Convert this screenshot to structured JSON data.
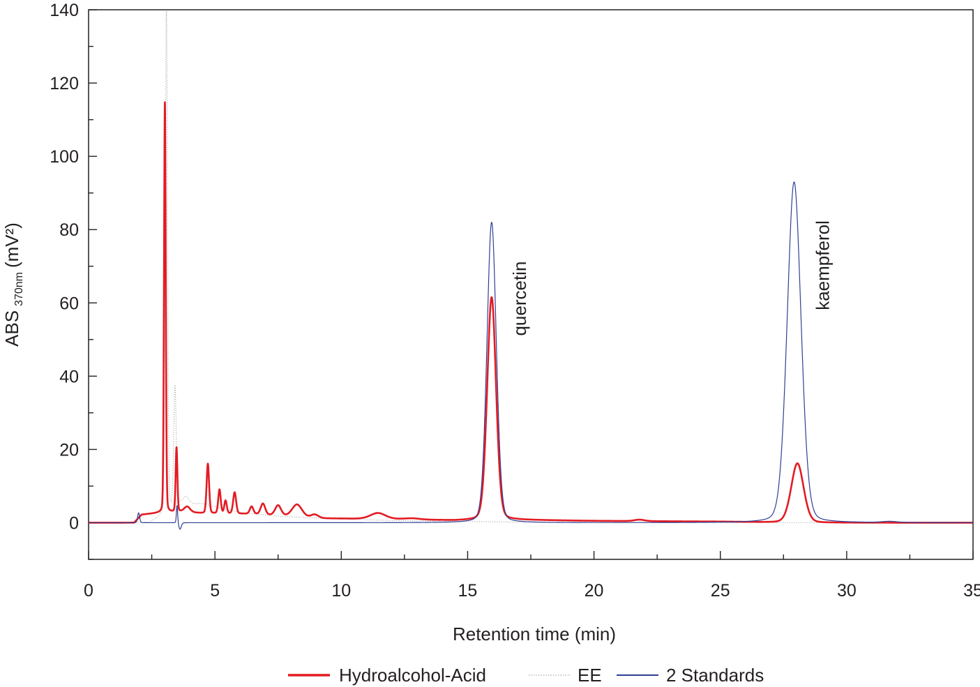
{
  "chart_data": {
    "type": "line",
    "xlabel": "Retention time (min)",
    "ylabel": {
      "main": "ABS",
      "subscript": "370nm",
      "unit": "(mV²)"
    },
    "xlim": [
      0,
      35
    ],
    "ylim": [
      -10,
      140
    ],
    "x_ticks": [
      0,
      5,
      10,
      15,
      20,
      25,
      30,
      35
    ],
    "y_ticks": [
      0,
      20,
      40,
      60,
      80,
      100,
      120,
      140
    ],
    "grid": false,
    "legend_position": "bottom",
    "annotations": [
      {
        "text": "quercetin",
        "x": 17.3,
        "y": 51,
        "rotation": -90
      },
      {
        "text": "kaempferol",
        "x": 29.3,
        "y": 58,
        "rotation": -90
      }
    ],
    "series": [
      {
        "name": "Hydroalcohol-Acid",
        "color": "#e31b23",
        "style": "solid",
        "baseline": [
          [
            0,
            0
          ],
          [
            1.8,
            0
          ],
          [
            2.1,
            2.2
          ],
          [
            2.7,
            2.6
          ],
          [
            3.6,
            3.0
          ],
          [
            4.5,
            2.6
          ],
          [
            6.5,
            2.4
          ],
          [
            9.0,
            1.2
          ],
          [
            12.0,
            1.0
          ],
          [
            14.5,
            0.6
          ],
          [
            16.5,
            0.8
          ],
          [
            20,
            0.5
          ],
          [
            25,
            0.3
          ],
          [
            28,
            0
          ],
          [
            35,
            0
          ]
        ],
        "peaks": [
          {
            "rt": 3.02,
            "height": 112,
            "width": 0.035
          },
          {
            "rt": 3.48,
            "height": 17.5,
            "width": 0.035
          },
          {
            "rt": 3.9,
            "height": 1.5,
            "width": 0.12
          },
          {
            "rt": 4.72,
            "height": 13.5,
            "width": 0.05
          },
          {
            "rt": 5.18,
            "height": 6.5,
            "width": 0.05
          },
          {
            "rt": 5.42,
            "height": 3.5,
            "width": 0.05
          },
          {
            "rt": 5.78,
            "height": 5.8,
            "width": 0.06
          },
          {
            "rt": 6.45,
            "height": 2.0,
            "width": 0.07
          },
          {
            "rt": 6.9,
            "height": 3.0,
            "width": 0.09
          },
          {
            "rt": 7.5,
            "height": 2.8,
            "width": 0.12
          },
          {
            "rt": 8.25,
            "height": 3.4,
            "width": 0.2
          },
          {
            "rt": 8.95,
            "height": 1.0,
            "width": 0.15
          },
          {
            "rt": 11.45,
            "height": 1.6,
            "width": 0.3
          },
          {
            "rt": 12.8,
            "height": 0.3,
            "width": 0.3
          },
          {
            "rt": 15.95,
            "height": 60.8,
            "width": 0.18
          },
          {
            "rt": 21.8,
            "height": 0.4,
            "width": 0.2
          },
          {
            "rt": 28.05,
            "height": 16.2,
            "width": 0.25
          }
        ]
      },
      {
        "name": "EE",
        "color": "#a7a9ac",
        "style": "dotted",
        "baseline": [
          [
            0,
            0
          ],
          [
            2.4,
            0
          ],
          [
            2.8,
            1.5
          ],
          [
            3.6,
            5
          ],
          [
            4.5,
            5.2
          ],
          [
            6.0,
            2.8
          ],
          [
            7.5,
            1.8
          ],
          [
            9.5,
            1.1
          ],
          [
            12,
            0.6
          ],
          [
            14,
            0.4
          ],
          [
            18,
            0.1
          ],
          [
            35,
            0
          ]
        ],
        "peaks": [
          {
            "rt": 3.08,
            "height": 138,
            "width": 0.045
          },
          {
            "rt": 3.42,
            "height": 33,
            "width": 0.05
          },
          {
            "rt": 3.85,
            "height": 2,
            "width": 0.12
          }
        ]
      },
      {
        "name": "2 Standards",
        "color": "#2e3f94",
        "style": "solid",
        "baseline": [
          [
            0,
            0
          ],
          [
            35,
            0
          ]
        ],
        "peaks": [
          {
            "rt": 1.98,
            "height": 2.7,
            "width": 0.04
          },
          {
            "rt": 3.5,
            "height": 4.8,
            "width": 0.025
          },
          {
            "rt": 3.62,
            "height": -1.8,
            "width": 0.05
          },
          {
            "rt": 15.95,
            "height": 82,
            "width": 0.19
          },
          {
            "rt": 27.92,
            "height": 93,
            "width": 0.28
          },
          {
            "rt": 31.7,
            "height": 0.3,
            "width": 0.3
          }
        ]
      }
    ]
  }
}
